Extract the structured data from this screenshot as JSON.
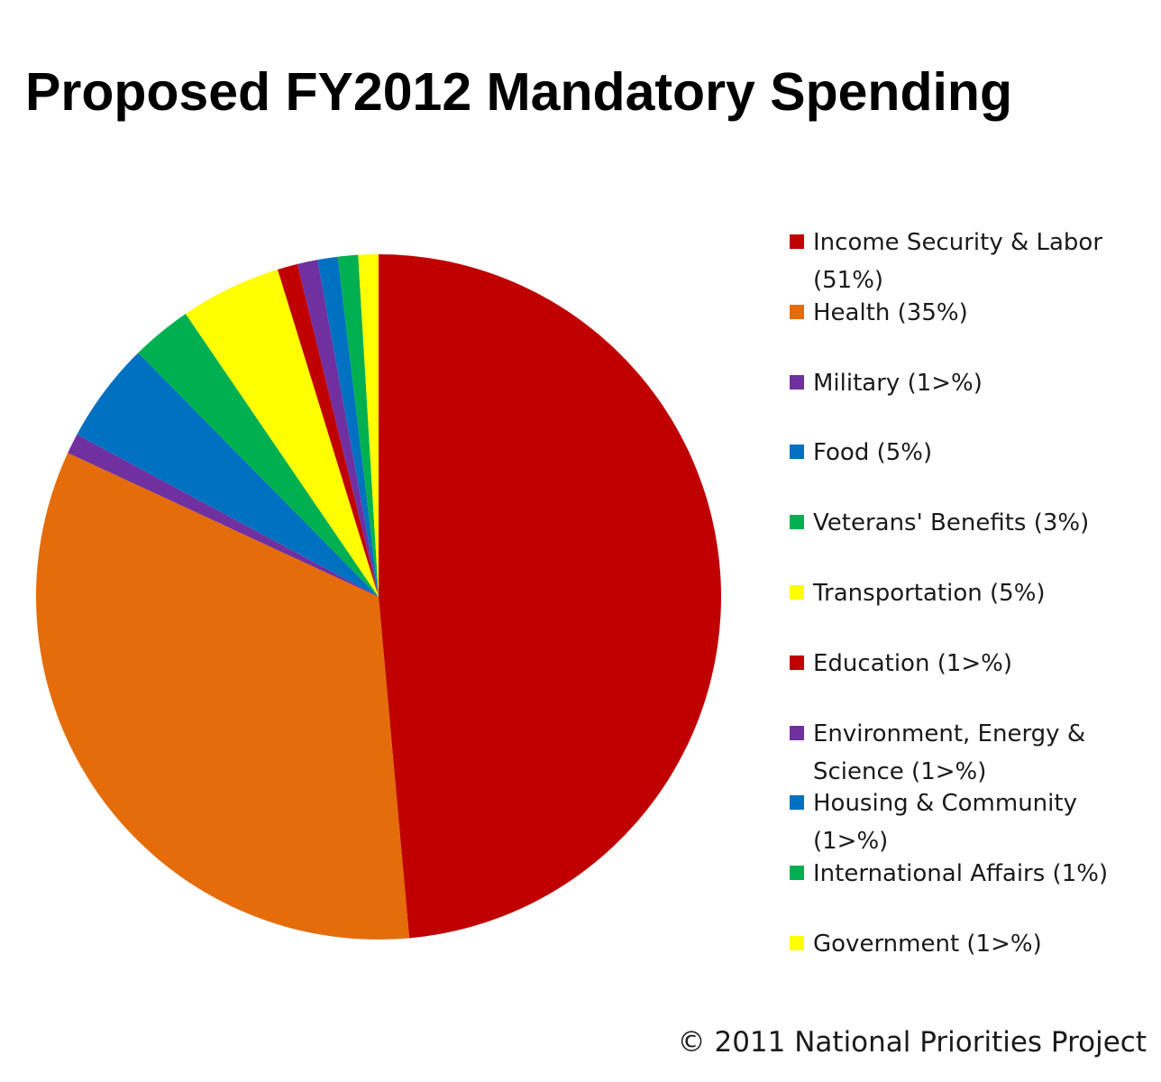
{
  "chart_data": {
    "type": "pie",
    "title": "Proposed FY2012 Mandatory Spending",
    "slices": [
      {
        "label": "Income Security & Labor (51%)",
        "value": 51,
        "color": "#c00000"
      },
      {
        "label": "Health (35%)",
        "value": 35,
        "color": "#e46c0a"
      },
      {
        "label": "Military (1>%)",
        "value": 1,
        "color": "#7030a0"
      },
      {
        "label": "Food (5%)",
        "value": 5,
        "color": "#0070c0"
      },
      {
        "label": "Veterans' Benefits (3%)",
        "value": 3,
        "color": "#00b050"
      },
      {
        "label": "Transportation (5%)",
        "value": 5,
        "color": "#ffff00"
      },
      {
        "label": "Education (1>%)",
        "value": 1,
        "color": "#c00000"
      },
      {
        "label": "Environment, Energy & Science (1>%)",
        "value": 1,
        "color": "#7030a0"
      },
      {
        "label": "Housing & Community (1>%)",
        "value": 1,
        "color": "#0070c0"
      },
      {
        "label": "International Affairs (1%)",
        "value": 1,
        "color": "#00b050"
      },
      {
        "label": "Government (1>%)",
        "value": 1,
        "color": "#ffff00"
      }
    ],
    "legend_position": "right"
  },
  "credit": "© 2011 National Priorities Project"
}
